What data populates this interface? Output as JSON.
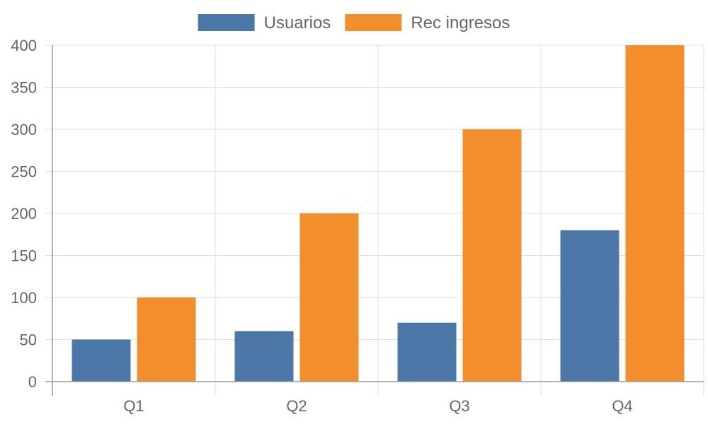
{
  "chart_data": {
    "type": "bar",
    "categories": [
      "Q1",
      "Q2",
      "Q3",
      "Q4"
    ],
    "series": [
      {
        "name": "Usuarios",
        "color": "#4c78a8",
        "values": [
          50,
          60,
          70,
          180
        ]
      },
      {
        "name": "Rec ingresos",
        "color": "#f28e2c",
        "values": [
          100,
          200,
          300,
          400
        ]
      }
    ],
    "ylim": [
      0,
      400
    ],
    "yticks": [
      0,
      50,
      100,
      150,
      200,
      250,
      300,
      350,
      400
    ],
    "grid": true,
    "legend_position": "top-center",
    "title": "",
    "xlabel": "",
    "ylabel": ""
  }
}
